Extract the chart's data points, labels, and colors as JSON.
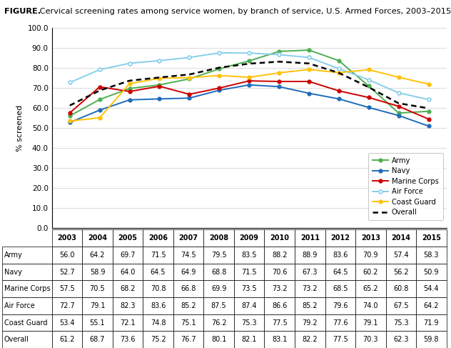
{
  "years": [
    2003,
    2004,
    2005,
    2006,
    2007,
    2008,
    2009,
    2010,
    2011,
    2012,
    2013,
    2014,
    2015
  ],
  "army": [
    56.0,
    64.2,
    69.7,
    71.5,
    74.5,
    79.5,
    83.5,
    88.2,
    88.9,
    83.6,
    70.9,
    57.4,
    58.3
  ],
  "navy": [
    52.7,
    58.9,
    64.0,
    64.5,
    64.9,
    68.8,
    71.5,
    70.6,
    67.3,
    64.5,
    60.2,
    56.2,
    50.9
  ],
  "marine": [
    57.5,
    70.5,
    68.2,
    70.8,
    66.8,
    69.9,
    73.5,
    73.2,
    73.2,
    68.5,
    65.2,
    60.8,
    54.4
  ],
  "airforce": [
    72.7,
    79.1,
    82.3,
    83.6,
    85.2,
    87.5,
    87.4,
    86.6,
    85.2,
    79.6,
    74.0,
    67.5,
    64.2
  ],
  "coastguard": [
    53.4,
    55.1,
    72.1,
    74.8,
    75.1,
    76.2,
    75.3,
    77.5,
    79.2,
    77.6,
    79.1,
    75.3,
    71.9
  ],
  "overall": [
    61.2,
    68.7,
    73.6,
    75.2,
    76.7,
    80.1,
    82.1,
    83.1,
    82.2,
    77.5,
    70.3,
    62.3,
    59.8
  ],
  "army_color": "#4caf50",
  "navy_color": "#1e6bba",
  "marine_color": "#cc0000",
  "airforce_color": "#87ceeb",
  "coastguard_color": "#ffc107",
  "overall_color": "#000000",
  "title_bold": "FIGURE.",
  "title_rest": " Cervical screening rates among service women, by branch of service, U.S. Armed Forces, 2003–2015",
  "ylabel": "% screened",
  "ylim": [
    0,
    100
  ],
  "yticks": [
    0.0,
    10.0,
    20.0,
    30.0,
    40.0,
    50.0,
    60.0,
    70.0,
    80.0,
    90.0,
    100.0
  ],
  "table_rows": [
    "Army",
    "Navy",
    "Marine Corps",
    "Air Force",
    "Coast Guard",
    "Overall"
  ],
  "table_row_data": [
    [
      56.0,
      64.2,
      69.7,
      71.5,
      74.5,
      79.5,
      83.5,
      88.2,
      88.9,
      83.6,
      70.9,
      57.4,
      58.3
    ],
    [
      52.7,
      58.9,
      64.0,
      64.5,
      64.9,
      68.8,
      71.5,
      70.6,
      67.3,
      64.5,
      60.2,
      56.2,
      50.9
    ],
    [
      57.5,
      70.5,
      68.2,
      70.8,
      66.8,
      69.9,
      73.5,
      73.2,
      73.2,
      68.5,
      65.2,
      60.8,
      54.4
    ],
    [
      72.7,
      79.1,
      82.3,
      83.6,
      85.2,
      87.5,
      87.4,
      86.6,
      85.2,
      79.6,
      74.0,
      67.5,
      64.2
    ],
    [
      53.4,
      55.1,
      72.1,
      74.8,
      75.1,
      76.2,
      75.3,
      77.5,
      79.2,
      77.6,
      79.1,
      75.3,
      71.9
    ],
    [
      61.2,
      68.7,
      73.6,
      75.2,
      76.7,
      80.1,
      82.1,
      83.1,
      82.2,
      77.5,
      70.3,
      62.3,
      59.8
    ]
  ]
}
